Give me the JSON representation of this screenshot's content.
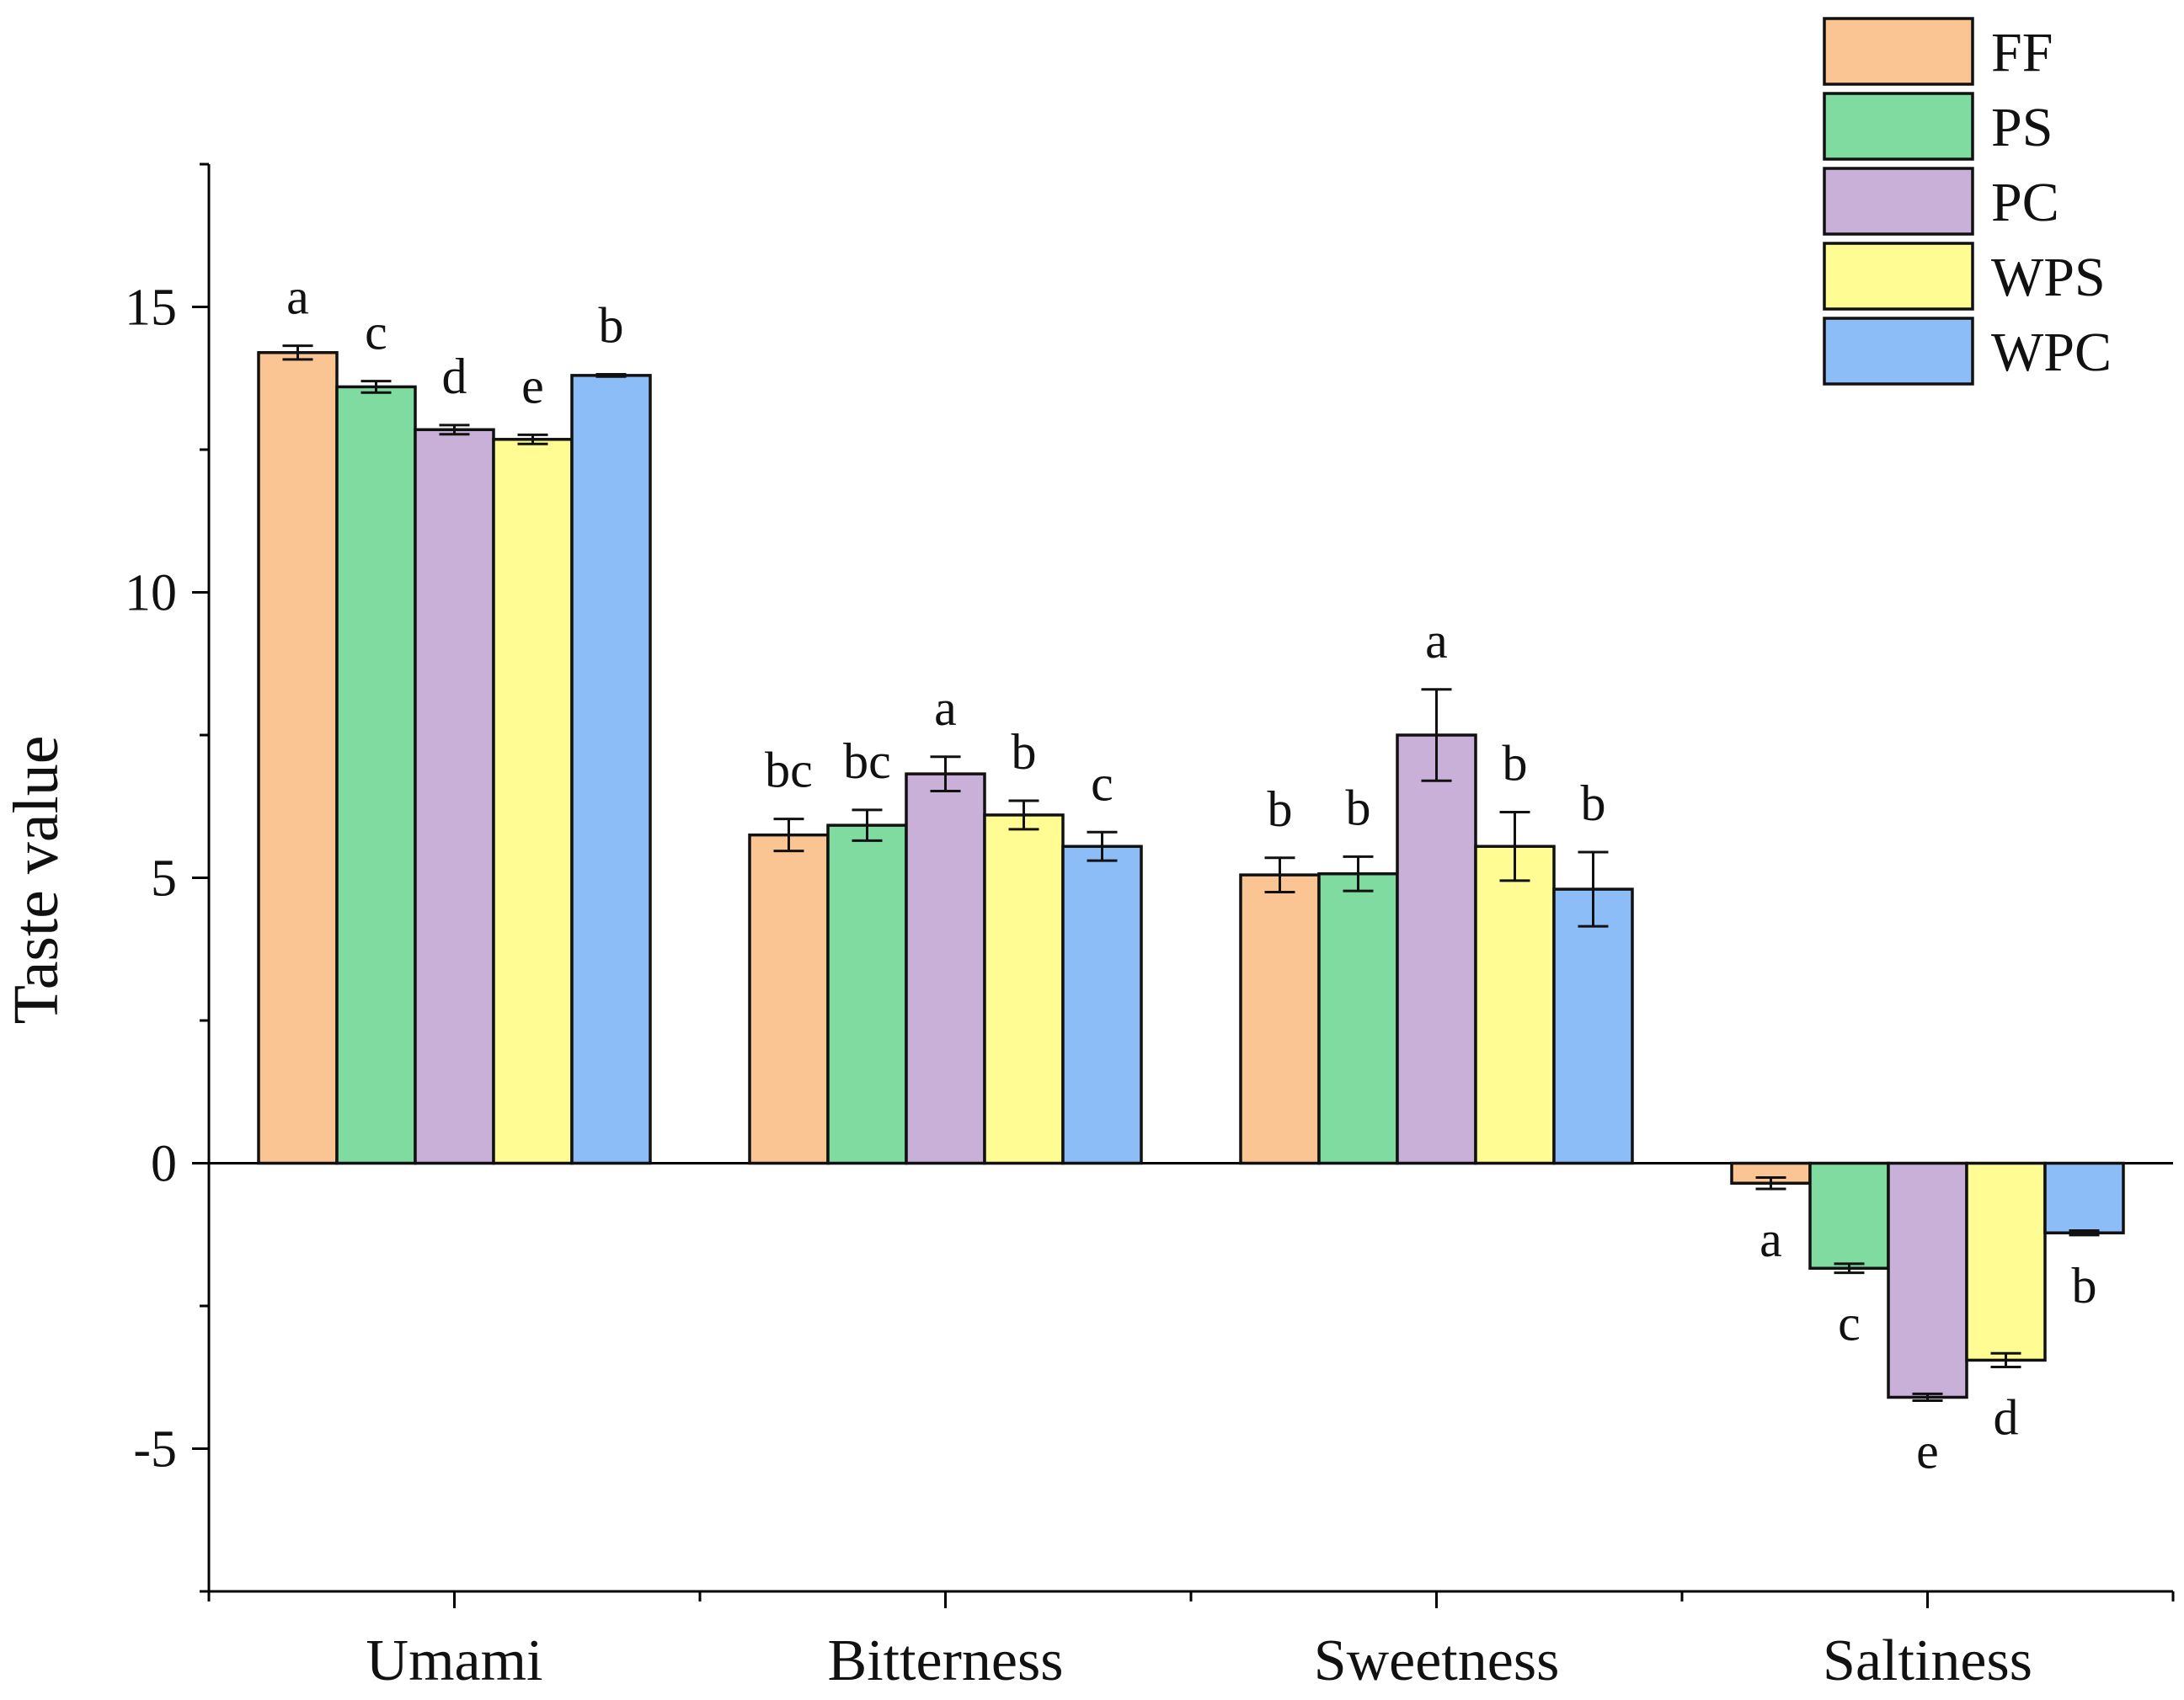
{
  "chart_data": {
    "type": "bar",
    "title": "",
    "xlabel": "",
    "ylabel": "Taste value",
    "ylim": [
      -7.5,
      17.5
    ],
    "yticks": [
      -5,
      0,
      5,
      10,
      15
    ],
    "ytick_labels": [
      "-5",
      "0",
      "5",
      "10",
      "15"
    ],
    "categories": [
      "Umami",
      "Bitterness",
      "Sweetness",
      "Saltiness"
    ],
    "legend_position": "top-right",
    "series": [
      {
        "name": "FF",
        "color": "#FBC493",
        "values": [
          14.2,
          5.75,
          5.05,
          -0.35
        ],
        "errors": [
          0.12,
          0.28,
          0.3,
          0.1
        ],
        "letters": [
          "a",
          "bc",
          "b",
          "a"
        ]
      },
      {
        "name": "PS",
        "color": "#80DBA0",
        "values": [
          13.6,
          5.92,
          5.07,
          -1.84
        ],
        "errors": [
          0.1,
          0.27,
          0.3,
          0.08
        ],
        "letters": [
          "c",
          "bc",
          "b",
          "c"
        ]
      },
      {
        "name": "PC",
        "color": "#C8B0D8",
        "values": [
          12.85,
          6.82,
          7.5,
          -4.1
        ],
        "errors": [
          0.08,
          0.3,
          0.8,
          0.06
        ],
        "letters": [
          "d",
          "a",
          "a",
          "e"
        ]
      },
      {
        "name": "WPS",
        "color": "#FEFC92",
        "values": [
          12.68,
          6.1,
          5.55,
          -3.45
        ],
        "errors": [
          0.08,
          0.25,
          0.6,
          0.12
        ],
        "letters": [
          "e",
          "b",
          "b",
          "d"
        ]
      },
      {
        "name": "WPC",
        "color": "#8CBDF6",
        "values": [
          13.8,
          5.55,
          4.8,
          -1.22
        ],
        "errors": [
          0.02,
          0.25,
          0.65,
          0.04
        ],
        "letters": [
          "b",
          "c",
          "b",
          "b"
        ]
      }
    ]
  }
}
